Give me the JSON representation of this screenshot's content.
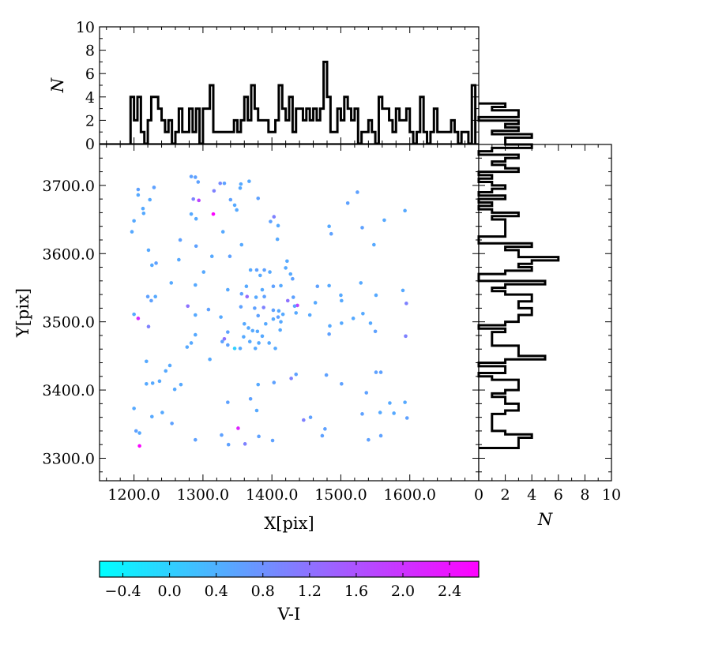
{
  "chart_data": [
    {
      "id": "scatter",
      "type": "scatter",
      "xlabel": "X[pix]",
      "ylabel": "Y[pix]",
      "xlim": [
        1150,
        1700
      ],
      "ylim": [
        3267,
        3760
      ],
      "xticks": [
        1200,
        1300,
        1400,
        1500,
        1600
      ],
      "xtick_labels": [
        "1200.0",
        "1300.0",
        "1400.0",
        "1500.0",
        "1600.0"
      ],
      "yticks": [
        3300,
        3400,
        3500,
        3600,
        3700
      ],
      "ytick_labels": [
        "3300.0",
        "3400.0",
        "3500.0",
        "3600.0",
        "3700.0"
      ],
      "grid": false,
      "colormap": "cool",
      "color_value": "V-I",
      "points": [
        {
          "x": 1283,
          "y": 3713,
          "c": 0.6
        },
        {
          "x": 1289,
          "y": 3712,
          "c": 0.6
        },
        {
          "x": 1293,
          "y": 3705,
          "c": 0.6
        },
        {
          "x": 1325,
          "y": 3703,
          "c": 0.9
        },
        {
          "x": 1331,
          "y": 3703,
          "c": 0.6
        },
        {
          "x": 1367,
          "y": 3706,
          "c": 0.5
        },
        {
          "x": 1355,
          "y": 3702,
          "c": 0.5
        },
        {
          "x": 1354,
          "y": 3696,
          "c": 0.5
        },
        {
          "x": 1316,
          "y": 3692,
          "c": 1.0
        },
        {
          "x": 1206,
          "y": 3694,
          "c": 0.6
        },
        {
          "x": 1206,
          "y": 3686,
          "c": 0.5
        },
        {
          "x": 1229,
          "y": 3697,
          "c": 0.6
        },
        {
          "x": 1524,
          "y": 3690,
          "c": 0.6
        },
        {
          "x": 1286,
          "y": 3680,
          "c": 1.0
        },
        {
          "x": 1294,
          "y": 3678,
          "c": 1.8
        },
        {
          "x": 1340,
          "y": 3679,
          "c": 0.6
        },
        {
          "x": 1380,
          "y": 3681,
          "c": 0.6
        },
        {
          "x": 1223,
          "y": 3679,
          "c": 0.5
        },
        {
          "x": 1213,
          "y": 3666,
          "c": 0.5
        },
        {
          "x": 1214,
          "y": 3659,
          "c": 0.5
        },
        {
          "x": 1346,
          "y": 3671,
          "c": 0.5
        },
        {
          "x": 1349,
          "y": 3664,
          "c": 0.5
        },
        {
          "x": 1510,
          "y": 3674,
          "c": 0.6
        },
        {
          "x": 1593,
          "y": 3663,
          "c": 0.5
        },
        {
          "x": 1315,
          "y": 3658,
          "c": 2.6
        },
        {
          "x": 1283,
          "y": 3658,
          "c": 0.5
        },
        {
          "x": 1290,
          "y": 3651,
          "c": 0.5
        },
        {
          "x": 1403,
          "y": 3654,
          "c": 1.0
        },
        {
          "x": 1398,
          "y": 3647,
          "c": 0.6
        },
        {
          "x": 1200,
          "y": 3648,
          "c": 0.5
        },
        {
          "x": 1563,
          "y": 3649,
          "c": 0.5
        },
        {
          "x": 1483,
          "y": 3640,
          "c": 0.5
        },
        {
          "x": 1531,
          "y": 3638,
          "c": 0.6
        },
        {
          "x": 1409,
          "y": 3641,
          "c": 0.5
        },
        {
          "x": 1197,
          "y": 3632,
          "c": 0.5
        },
        {
          "x": 1329,
          "y": 3632,
          "c": 0.5
        },
        {
          "x": 1486,
          "y": 3629,
          "c": 0.6
        },
        {
          "x": 1408,
          "y": 3621,
          "c": 0.5
        },
        {
          "x": 1267,
          "y": 3620,
          "c": 0.6
        },
        {
          "x": 1290,
          "y": 3611,
          "c": 0.6
        },
        {
          "x": 1356,
          "y": 3613,
          "c": 0.5
        },
        {
          "x": 1548,
          "y": 3613,
          "c": 0.5
        },
        {
          "x": 1221,
          "y": 3605,
          "c": 0.5
        },
        {
          "x": 1313,
          "y": 3596,
          "c": 0.5
        },
        {
          "x": 1339,
          "y": 3596,
          "c": 0.6
        },
        {
          "x": 1265,
          "y": 3591,
          "c": 0.5
        },
        {
          "x": 1232,
          "y": 3586,
          "c": 0.6
        },
        {
          "x": 1226,
          "y": 3583,
          "c": 0.5
        },
        {
          "x": 1422,
          "y": 3589,
          "c": 0.5
        },
        {
          "x": 1420,
          "y": 3579,
          "c": 0.5
        },
        {
          "x": 1369,
          "y": 3576,
          "c": 0.5
        },
        {
          "x": 1378,
          "y": 3576,
          "c": 0.6
        },
        {
          "x": 1389,
          "y": 3576,
          "c": 0.6
        },
        {
          "x": 1397,
          "y": 3573,
          "c": 0.5
        },
        {
          "x": 1301,
          "y": 3573,
          "c": 0.5
        },
        {
          "x": 1427,
          "y": 3570,
          "c": 0.5
        },
        {
          "x": 1383,
          "y": 3568,
          "c": 0.5
        },
        {
          "x": 1430,
          "y": 3563,
          "c": 0.6
        },
        {
          "x": 1254,
          "y": 3557,
          "c": 0.5
        },
        {
          "x": 1289,
          "y": 3554,
          "c": 0.5
        },
        {
          "x": 1529,
          "y": 3557,
          "c": 0.5
        },
        {
          "x": 1466,
          "y": 3552,
          "c": 0.6
        },
        {
          "x": 1483,
          "y": 3553,
          "c": 0.5
        },
        {
          "x": 1590,
          "y": 3546,
          "c": 0.5
        },
        {
          "x": 1363,
          "y": 3552,
          "c": 0.5
        },
        {
          "x": 1386,
          "y": 3547,
          "c": 0.5
        },
        {
          "x": 1402,
          "y": 3552,
          "c": 0.6
        },
        {
          "x": 1413,
          "y": 3553,
          "c": 0.5
        },
        {
          "x": 1336,
          "y": 3547,
          "c": 0.5
        },
        {
          "x": 1356,
          "y": 3541,
          "c": 0.6
        },
        {
          "x": 1220,
          "y": 3537,
          "c": 0.6
        },
        {
          "x": 1231,
          "y": 3537,
          "c": 0.5
        },
        {
          "x": 1225,
          "y": 3531,
          "c": 0.6
        },
        {
          "x": 1364,
          "y": 3537,
          "c": 1.3
        },
        {
          "x": 1377,
          "y": 3536,
          "c": 0.5
        },
        {
          "x": 1389,
          "y": 3537,
          "c": 0.6
        },
        {
          "x": 1431,
          "y": 3536,
          "c": 0.6
        },
        {
          "x": 1500,
          "y": 3539,
          "c": 0.5
        },
        {
          "x": 1551,
          "y": 3539,
          "c": 0.5
        },
        {
          "x": 1423,
          "y": 3531,
          "c": 1.2
        },
        {
          "x": 1501,
          "y": 3531,
          "c": 0.5
        },
        {
          "x": 1463,
          "y": 3528,
          "c": 0.5
        },
        {
          "x": 1595,
          "y": 3527,
          "c": 1.0
        },
        {
          "x": 1278,
          "y": 3523,
          "c": 1.2
        },
        {
          "x": 1355,
          "y": 3522,
          "c": 0.6
        },
        {
          "x": 1388,
          "y": 3521,
          "c": 1.0
        },
        {
          "x": 1437,
          "y": 3524,
          "c": 1.8
        },
        {
          "x": 1375,
          "y": 3520,
          "c": 0.6
        },
        {
          "x": 1433,
          "y": 3523,
          "c": 0.6
        },
        {
          "x": 1402,
          "y": 3517,
          "c": 0.6
        },
        {
          "x": 1308,
          "y": 3518,
          "c": 0.6
        },
        {
          "x": 1200,
          "y": 3511,
          "c": 0.5
        },
        {
          "x": 1289,
          "y": 3510,
          "c": 0.5
        },
        {
          "x": 1410,
          "y": 3516,
          "c": 0.5
        },
        {
          "x": 1416,
          "y": 3511,
          "c": 0.5
        },
        {
          "x": 1435,
          "y": 3513,
          "c": 0.5
        },
        {
          "x": 1455,
          "y": 3510,
          "c": 0.5
        },
        {
          "x": 1532,
          "y": 3512,
          "c": 0.5
        },
        {
          "x": 1380,
          "y": 3509,
          "c": 0.6
        },
        {
          "x": 1409,
          "y": 3507,
          "c": 0.6
        },
        {
          "x": 1326,
          "y": 3507,
          "c": 0.5
        },
        {
          "x": 1402,
          "y": 3504,
          "c": 0.5
        },
        {
          "x": 1206,
          "y": 3505,
          "c": 2.1
        },
        {
          "x": 1518,
          "y": 3505,
          "c": 0.5
        },
        {
          "x": 1360,
          "y": 3497,
          "c": 0.5
        },
        {
          "x": 1391,
          "y": 3497,
          "c": 0.5
        },
        {
          "x": 1413,
          "y": 3500,
          "c": 0.5
        },
        {
          "x": 1501,
          "y": 3498,
          "c": 0.5
        },
        {
          "x": 1543,
          "y": 3498,
          "c": 0.5
        },
        {
          "x": 1221,
          "y": 3493,
          "c": 1.0
        },
        {
          "x": 1484,
          "y": 3494,
          "c": 0.5
        },
        {
          "x": 1366,
          "y": 3491,
          "c": 0.5
        },
        {
          "x": 1372,
          "y": 3487,
          "c": 0.5
        },
        {
          "x": 1379,
          "y": 3486,
          "c": 0.5
        },
        {
          "x": 1412,
          "y": 3488,
          "c": 0.5
        },
        {
          "x": 1336,
          "y": 3485,
          "c": 0.6
        },
        {
          "x": 1550,
          "y": 3486,
          "c": 0.6
        },
        {
          "x": 1386,
          "y": 3479,
          "c": 0.5
        },
        {
          "x": 1289,
          "y": 3481,
          "c": 0.5
        },
        {
          "x": 1483,
          "y": 3482,
          "c": 0.6
        },
        {
          "x": 1594,
          "y": 3479,
          "c": 1.0
        },
        {
          "x": 1331,
          "y": 3475,
          "c": 1.2
        },
        {
          "x": 1359,
          "y": 3478,
          "c": 0.5
        },
        {
          "x": 1328,
          "y": 3471,
          "c": 0.6
        },
        {
          "x": 1368,
          "y": 3471,
          "c": 0.5
        },
        {
          "x": 1381,
          "y": 3469,
          "c": 0.5
        },
        {
          "x": 1336,
          "y": 3466,
          "c": 0.6
        },
        {
          "x": 1396,
          "y": 3469,
          "c": 0.5
        },
        {
          "x": 1283,
          "y": 3469,
          "c": 0.5
        },
        {
          "x": 1277,
          "y": 3463,
          "c": 0.5
        },
        {
          "x": 1346,
          "y": 3461,
          "c": 0.0
        },
        {
          "x": 1354,
          "y": 3461,
          "c": 0.5
        },
        {
          "x": 1376,
          "y": 3461,
          "c": 0.5
        },
        {
          "x": 1405,
          "y": 3461,
          "c": 0.5
        },
        {
          "x": 1310,
          "y": 3445,
          "c": 0.5
        },
        {
          "x": 1218,
          "y": 3442,
          "c": 0.5
        },
        {
          "x": 1252,
          "y": 3436,
          "c": 0.5
        },
        {
          "x": 1246,
          "y": 3428,
          "c": 0.5
        },
        {
          "x": 1551,
          "y": 3426,
          "c": 0.6
        },
        {
          "x": 1558,
          "y": 3426,
          "c": 0.6
        },
        {
          "x": 1435,
          "y": 3423,
          "c": 0.6
        },
        {
          "x": 1479,
          "y": 3422,
          "c": 0.6
        },
        {
          "x": 1428,
          "y": 3417,
          "c": 1.0
        },
        {
          "x": 1237,
          "y": 3413,
          "c": 0.5
        },
        {
          "x": 1218,
          "y": 3409,
          "c": 0.5
        },
        {
          "x": 1227,
          "y": 3410,
          "c": 0.5
        },
        {
          "x": 1268,
          "y": 3408,
          "c": 0.5
        },
        {
          "x": 1501,
          "y": 3409,
          "c": 0.6
        },
        {
          "x": 1380,
          "y": 3408,
          "c": 0.5
        },
        {
          "x": 1403,
          "y": 3411,
          "c": 0.6
        },
        {
          "x": 1259,
          "y": 3401,
          "c": 0.5
        },
        {
          "x": 1537,
          "y": 3396,
          "c": 0.6
        },
        {
          "x": 1369,
          "y": 3387,
          "c": 0.6
        },
        {
          "x": 1336,
          "y": 3382,
          "c": 0.6
        },
        {
          "x": 1571,
          "y": 3381,
          "c": 0.5
        },
        {
          "x": 1593,
          "y": 3382,
          "c": 0.5
        },
        {
          "x": 1200,
          "y": 3373,
          "c": 0.5
        },
        {
          "x": 1241,
          "y": 3367,
          "c": 0.5
        },
        {
          "x": 1378,
          "y": 3370,
          "c": 0.5
        },
        {
          "x": 1531,
          "y": 3365,
          "c": 0.6
        },
        {
          "x": 1557,
          "y": 3367,
          "c": 0.5
        },
        {
          "x": 1577,
          "y": 3366,
          "c": 0.5
        },
        {
          "x": 1226,
          "y": 3361,
          "c": 0.5
        },
        {
          "x": 1456,
          "y": 3360,
          "c": 0.6
        },
        {
          "x": 1446,
          "y": 3356,
          "c": 1.0
        },
        {
          "x": 1596,
          "y": 3359,
          "c": 0.6
        },
        {
          "x": 1255,
          "y": 3351,
          "c": 0.6
        },
        {
          "x": 1351,
          "y": 3344,
          "c": 2.2
        },
        {
          "x": 1203,
          "y": 3340,
          "c": 0.6
        },
        {
          "x": 1477,
          "y": 3343,
          "c": 0.6
        },
        {
          "x": 1208,
          "y": 3337,
          "c": 0.5
        },
        {
          "x": 1327,
          "y": 3334,
          "c": 0.6
        },
        {
          "x": 1473,
          "y": 3333,
          "c": 0.6
        },
        {
          "x": 1381,
          "y": 3332,
          "c": 0.6
        },
        {
          "x": 1558,
          "y": 3333,
          "c": 0.6
        },
        {
          "x": 1289,
          "y": 3327,
          "c": 0.6
        },
        {
          "x": 1401,
          "y": 3326,
          "c": 0.6
        },
        {
          "x": 1540,
          "y": 3327,
          "c": 0.6
        },
        {
          "x": 1337,
          "y": 3320,
          "c": 0.6
        },
        {
          "x": 1361,
          "y": 3321,
          "c": 1.0
        },
        {
          "x": 1208,
          "y": 3318,
          "c": 2.6
        }
      ]
    },
    {
      "id": "top-histogram",
      "type": "bar",
      "ylabel": "N",
      "ylim": [
        0,
        10
      ],
      "yticks": [
        0,
        2,
        4,
        6,
        8,
        10
      ],
      "ytick_labels": [
        "0",
        "2",
        "4",
        "6",
        "8",
        "10"
      ],
      "bin_start": 1195,
      "bin_width": 5,
      "counts": [
        4,
        2,
        4,
        1,
        0,
        2,
        4,
        4,
        3,
        2,
        1,
        2,
        0,
        1,
        3,
        1,
        1,
        3,
        1,
        3,
        0,
        3,
        3,
        5,
        1,
        1,
        1,
        1,
        1,
        1,
        2,
        1,
        2,
        4,
        2,
        5,
        3,
        2,
        2,
        2,
        1,
        1,
        2,
        5,
        3,
        2,
        4,
        1,
        3,
        3,
        2,
        3,
        2,
        3,
        2,
        3,
        7,
        4,
        1,
        1,
        3,
        2,
        4,
        3,
        2,
        3,
        0,
        1,
        1,
        2,
        1,
        0,
        4,
        3,
        3,
        2,
        1,
        3,
        2,
        2,
        3,
        1,
        0,
        1,
        4,
        1,
        0,
        1,
        3,
        1,
        1,
        1,
        1,
        2,
        1,
        0,
        1,
        1,
        0,
        5
      ]
    },
    {
      "id": "right-histogram",
      "type": "bar",
      "orientation": "horizontal",
      "xlabel": "N",
      "xlim": [
        0,
        10
      ],
      "xticks": [
        0,
        2,
        4,
        6,
        8,
        10
      ],
      "xtick_labels": [
        "0",
        "2",
        "4",
        "6",
        "8",
        "10"
      ],
      "bin_start": 3315,
      "bin_width": 5,
      "counts": [
        3,
        3,
        3,
        4,
        2,
        1,
        1,
        1,
        1,
        1,
        2,
        3,
        3,
        2,
        2,
        1,
        2,
        3,
        3,
        3,
        1,
        0,
        2,
        2,
        0,
        2,
        5,
        3,
        3,
        3,
        1,
        1,
        1,
        1,
        2,
        0,
        2,
        3,
        3,
        4,
        4,
        3,
        3,
        4,
        4,
        2,
        1,
        2,
        5,
        0,
        0,
        2,
        4,
        3,
        4,
        6,
        3,
        3,
        2,
        4,
        0,
        0,
        2,
        2,
        2,
        2,
        2,
        1,
        3,
        1,
        0,
        1,
        0,
        2,
        0,
        1,
        2,
        1,
        0,
        1,
        0,
        3,
        2,
        1,
        2,
        3,
        0,
        1,
        4,
        2,
        2,
        4,
        1,
        3,
        2,
        3,
        0,
        3,
        3,
        1,
        2
      ]
    },
    {
      "id": "colorbar",
      "type": "heatmap",
      "xlabel": "V-I",
      "xlim": [
        -0.6,
        2.65
      ],
      "xticks": [
        -0.4,
        0.0,
        0.4,
        0.8,
        1.2,
        1.6,
        2.0,
        2.4
      ],
      "xtick_labels": [
        "−0.4",
        "0.0",
        "0.4",
        "0.8",
        "1.2",
        "1.6",
        "2.0",
        "2.4"
      ],
      "colormap": "cool",
      "color_min": "#00ffff",
      "color_max": "#ff00ff"
    }
  ]
}
